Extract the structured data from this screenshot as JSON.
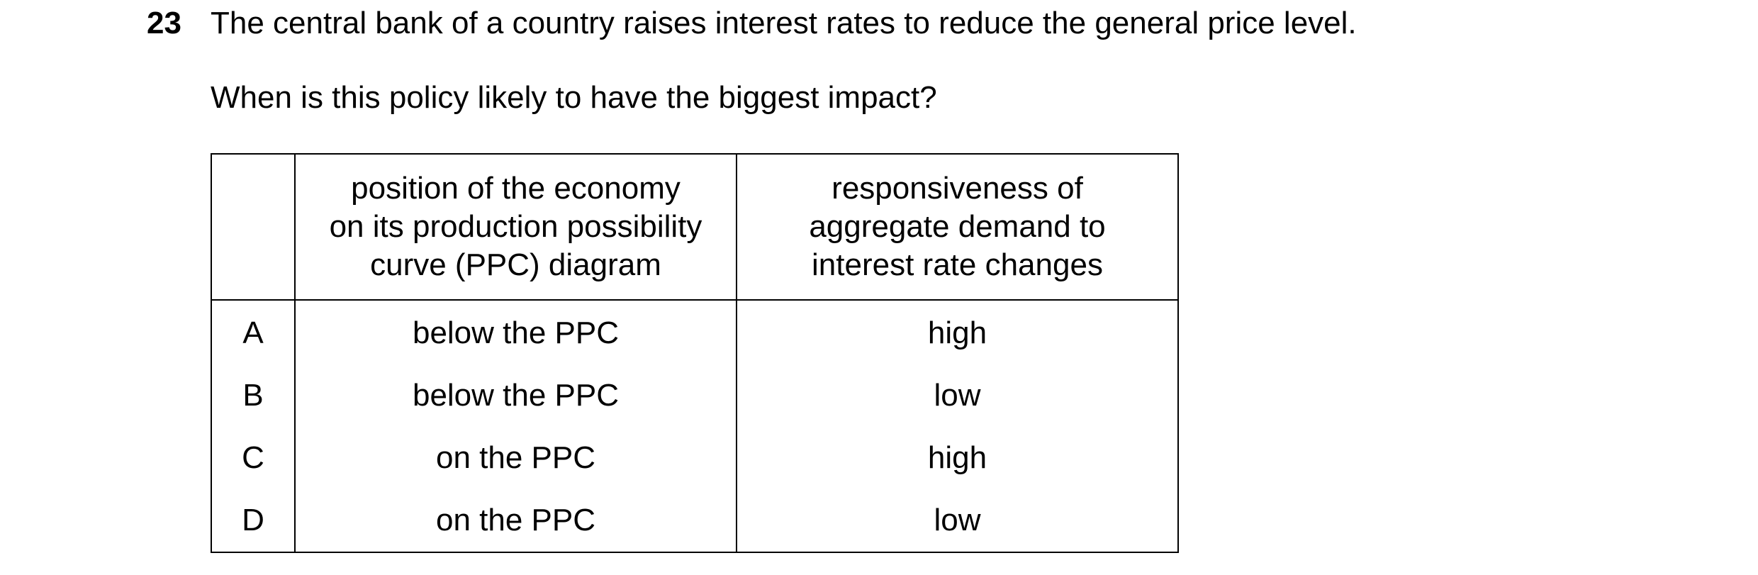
{
  "question": {
    "number": "23",
    "stem": "The central bank of a country raises interest rates to reduce the general price level.",
    "prompt": "When is this policy likely to have the biggest impact?"
  },
  "table": {
    "headers": [
      "",
      [
        "position of the economy",
        "on its production possibility",
        "curve (PPC) diagram"
      ],
      [
        "responsiveness of",
        "aggregate demand to",
        "interest rate changes"
      ]
    ],
    "rows": [
      {
        "letter": "A",
        "position": "below the PPC",
        "responsiveness": "high"
      },
      {
        "letter": "B",
        "position": "below the PPC",
        "responsiveness": "low"
      },
      {
        "letter": "C",
        "position": "on the PPC",
        "responsiveness": "high"
      },
      {
        "letter": "D",
        "position": "on the PPC",
        "responsiveness": "low"
      }
    ]
  }
}
